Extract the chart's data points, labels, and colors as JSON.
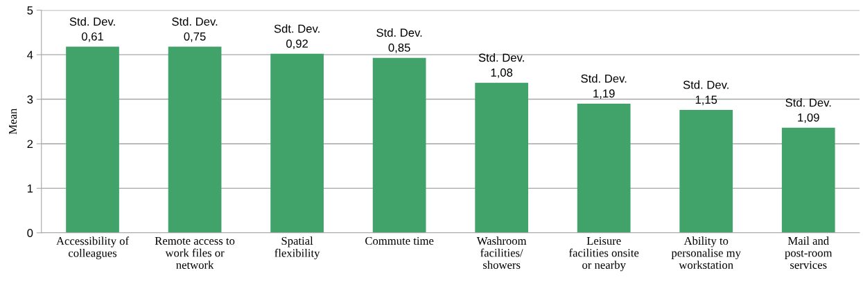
{
  "chart_data": {
    "type": "bar",
    "ylabel": "Mean",
    "categories": [
      "Accessibility of colleagues",
      "Remote access to work files or network",
      "Spatial flexibility",
      "Commute time",
      "Washroom facilities/ showers",
      "Leisure facilities onsite or nearby",
      "Ability to personalise my workstation",
      "Mail and post-room services"
    ],
    "values": [
      4.18,
      4.18,
      4.02,
      3.93,
      3.37,
      2.9,
      2.76,
      2.36
    ],
    "color": "#41a36a",
    "ylim": [
      0,
      5
    ],
    "yticks": [
      0,
      1,
      2,
      3,
      4,
      5
    ],
    "grid": "y",
    "annotations": [
      {
        "text": "Std. Dev.\n0,61",
        "x": "Accessibility of colleagues",
        "y": 4.18
      },
      {
        "text": "Std. Dev.\n0,75",
        "x": "Remote access to work files or network",
        "y": 4.18
      },
      {
        "text": "Sdt. Dev.\n0,92",
        "x": "Spatial flexibility",
        "y": 4.02
      },
      {
        "text": "Std. Dev.\n0,85",
        "x": "Commute time",
        "y": 3.93
      },
      {
        "text": "Std. Dev.\n1,08",
        "x": "Washroom facilities/ showers",
        "y": 3.37
      },
      {
        "text": "Std. Dev.\n1,19",
        "x": "Leisure facilities onsite or nearby",
        "y": 2.9
      },
      {
        "text": "Std. Dev.\n1,15",
        "x": "Ability to personalise my workstation",
        "y": 2.76
      },
      {
        "text": "Std. Dev.\n1,09",
        "x": "Mail and post-room services",
        "y": 2.36
      }
    ]
  }
}
